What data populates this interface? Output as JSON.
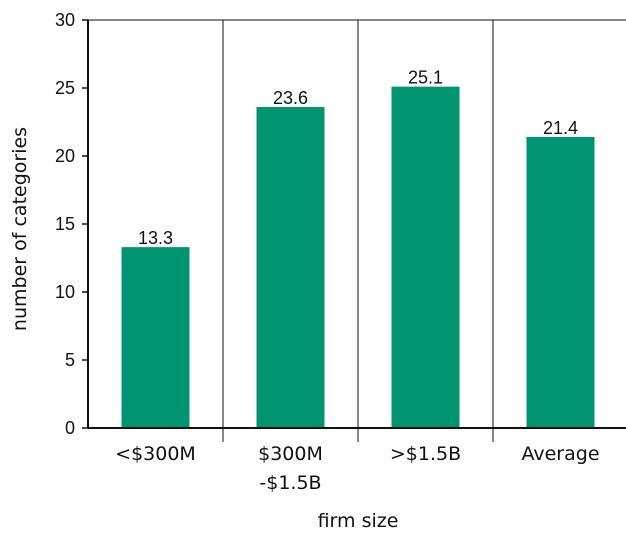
{
  "colors": {
    "bar": "#009570",
    "axis": "#111111",
    "grid": "#111111"
  },
  "chart_data": {
    "type": "bar",
    "categories": [
      [
        "<$300M"
      ],
      [
        "$300M",
        "-$1.5B"
      ],
      [
        ">$1.5B"
      ],
      [
        "Average"
      ]
    ],
    "values": [
      13.3,
      23.6,
      25.1,
      21.4
    ],
    "value_labels": [
      "13.3",
      "23.6",
      "25.1",
      "21.4"
    ],
    "xlabel": "firm size",
    "ylabel": "number of categories",
    "ylim": [
      0,
      30
    ],
    "yticks": [
      0,
      5,
      10,
      15,
      20,
      25,
      30
    ],
    "ytick_labels": [
      "0",
      "5",
      "10",
      "15",
      "20",
      "25",
      "30"
    ],
    "grid": "vertical separators between categories",
    "legend": "none"
  }
}
